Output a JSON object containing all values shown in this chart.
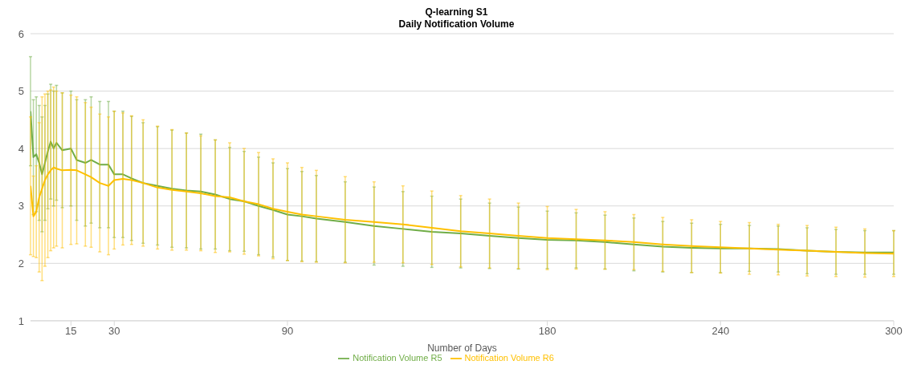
{
  "chart_data": {
    "type": "line",
    "title": "Q-learning S1",
    "subtitle": "Daily Notification Volume",
    "xlabel": "Number of Days",
    "x": [
      1,
      2,
      3,
      4,
      5,
      6,
      7,
      8,
      9,
      10,
      12,
      15,
      17,
      20,
      22,
      25,
      28,
      30,
      33,
      36,
      40,
      45,
      50,
      55,
      60,
      65,
      70,
      75,
      80,
      85,
      90,
      95,
      100,
      110,
      120,
      130,
      140,
      150,
      160,
      170,
      180,
      190,
      200,
      210,
      220,
      230,
      240,
      250,
      260,
      270,
      280,
      290,
      300
    ],
    "series": [
      {
        "name": "Notification Volume R5",
        "color": "#70ad47",
        "values": [
          4.65,
          3.85,
          3.9,
          3.75,
          3.55,
          3.75,
          3.95,
          4.12,
          4.0,
          4.1,
          3.97,
          4.0,
          3.8,
          3.75,
          3.8,
          3.72,
          3.72,
          3.55,
          3.55,
          3.48,
          3.4,
          3.35,
          3.3,
          3.27,
          3.25,
          3.2,
          3.12,
          3.08,
          3.0,
          2.93,
          2.85,
          2.82,
          2.78,
          2.72,
          2.65,
          2.6,
          2.55,
          2.52,
          2.48,
          2.44,
          2.41,
          2.4,
          2.37,
          2.33,
          2.29,
          2.27,
          2.26,
          2.26,
          2.25,
          2.22,
          2.2,
          2.19,
          2.19
        ],
        "errors": [
          0.95,
          1.0,
          1.0,
          1.0,
          1.0,
          1.0,
          1.0,
          1.0,
          1.0,
          1.0,
          1.0,
          1.0,
          1.05,
          1.1,
          1.1,
          1.1,
          1.1,
          1.1,
          1.1,
          1.08,
          1.05,
          1.03,
          1.02,
          1.0,
          1.0,
          0.95,
          0.9,
          0.87,
          0.85,
          0.82,
          0.8,
          0.78,
          0.75,
          0.7,
          0.68,
          0.65,
          0.62,
          0.6,
          0.57,
          0.54,
          0.5,
          0.48,
          0.47,
          0.46,
          0.44,
          0.43,
          0.42,
          0.4,
          0.4,
          0.4,
          0.39,
          0.38,
          0.38
        ]
      },
      {
        "name": "Notification Volume R6",
        "color": "#ffc000",
        "values": [
          3.35,
          2.82,
          2.9,
          3.15,
          3.3,
          3.45,
          3.55,
          3.62,
          3.67,
          3.65,
          3.62,
          3.63,
          3.62,
          3.55,
          3.5,
          3.4,
          3.35,
          3.45,
          3.47,
          3.45,
          3.4,
          3.32,
          3.28,
          3.25,
          3.22,
          3.17,
          3.15,
          3.08,
          3.03,
          2.95,
          2.9,
          2.85,
          2.82,
          2.76,
          2.72,
          2.68,
          2.62,
          2.56,
          2.52,
          2.48,
          2.44,
          2.42,
          2.4,
          2.37,
          2.33,
          2.3,
          2.28,
          2.26,
          2.24,
          2.22,
          2.2,
          2.18,
          2.17
        ],
        "errors": [
          1.2,
          0.7,
          0.8,
          1.3,
          1.6,
          1.5,
          1.45,
          1.4,
          1.4,
          1.35,
          1.35,
          1.3,
          1.28,
          1.25,
          1.22,
          1.2,
          1.2,
          1.2,
          1.15,
          1.12,
          1.1,
          1.07,
          1.05,
          1.02,
          1.0,
          0.98,
          0.95,
          0.92,
          0.9,
          0.87,
          0.85,
          0.82,
          0.8,
          0.75,
          0.7,
          0.67,
          0.64,
          0.62,
          0.6,
          0.57,
          0.55,
          0.52,
          0.5,
          0.48,
          0.47,
          0.46,
          0.45,
          0.45,
          0.44,
          0.44,
          0.43,
          0.42,
          0.4
        ]
      }
    ],
    "xlim": [
      1,
      300
    ],
    "xticks": [
      15,
      30,
      90,
      180,
      240,
      300
    ],
    "ylim": [
      1,
      6
    ],
    "yticks": [
      1,
      2,
      3,
      4,
      5,
      6
    ],
    "grid": "y",
    "legend": "bottom"
  }
}
